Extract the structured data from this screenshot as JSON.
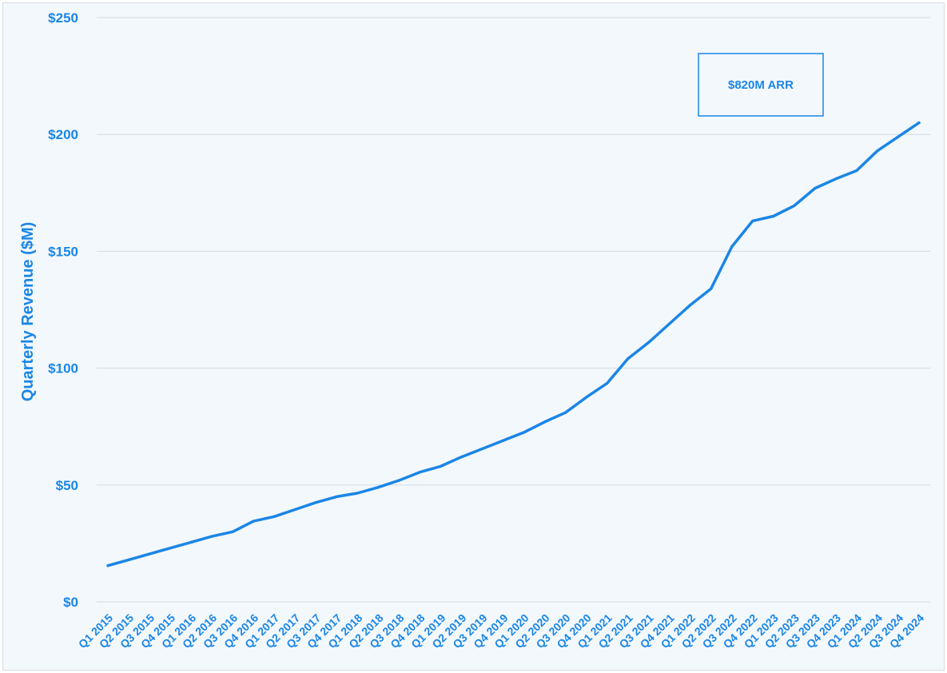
{
  "chart_data": {
    "type": "line",
    "title": "",
    "xlabel": "",
    "ylabel": "Quarterly Revenue ($M)",
    "ylim": [
      0,
      250
    ],
    "y_ticks": [
      "$0",
      "$50",
      "$100",
      "$150",
      "$200",
      "$250"
    ],
    "grid": true,
    "legend": "none",
    "color": "#1a86e6",
    "categories": [
      "Q1 2015",
      "Q2 2015",
      "Q3 2015",
      "Q4 2015",
      "Q1 2016",
      "Q2 2016",
      "Q3 2016",
      "Q4 2016",
      "Q1 2017",
      "Q2 2017",
      "Q3 2017",
      "Q4 2017",
      "Q1 2018",
      "Q2 2018",
      "Q3 2018",
      "Q4 2018",
      "Q1 2019",
      "Q2 2019",
      "Q3 2019",
      "Q4 2019",
      "Q1 2020",
      "Q2 2020",
      "Q3 2020",
      "Q4 2020",
      "Q1 2021",
      "Q2 2021",
      "Q3 2021",
      "Q4 2021",
      "Q1 2022",
      "Q2 2022",
      "Q3 2022",
      "Q4 2022",
      "Q1 2023",
      "Q2 2023",
      "Q3 2023",
      "Q4 2023",
      "Q1 2024",
      "Q2 2024",
      "Q3 2024",
      "Q4 2024"
    ],
    "series": [
      {
        "values": [
          15.5,
          18,
          20.5,
          23,
          25.5,
          28,
          30,
          34.5,
          36.5,
          39.5,
          42.5,
          45,
          46.5,
          49,
          52,
          55.5,
          58,
          62,
          65.5,
          69,
          72.5,
          77,
          81,
          87.5,
          93.5,
          104,
          111,
          119,
          127,
          134,
          152,
          163,
          165,
          169.5,
          177,
          181,
          184.5,
          193,
          199,
          205
        ]
      }
    ],
    "annotation": "$820M ARR"
  }
}
